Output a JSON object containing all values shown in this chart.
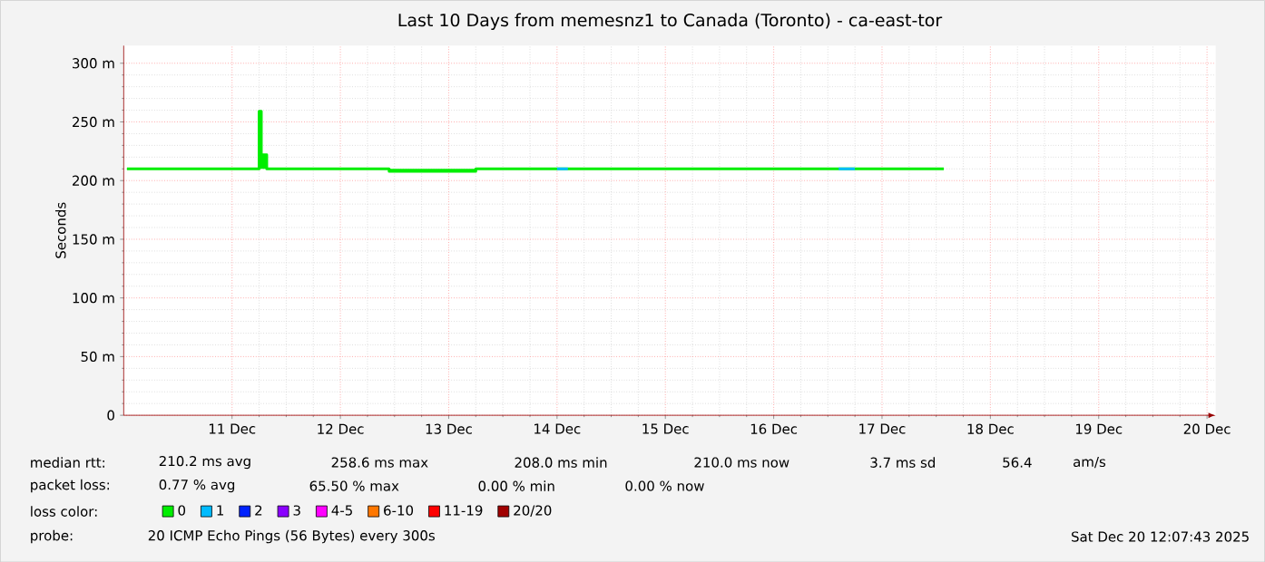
{
  "chart_data": {
    "type": "line",
    "title": "Last 10 Days from memesnz1 to Canada (Toronto) - ca-east-tor",
    "ylabel": "Seconds",
    "xlim": [
      "2025-12-10T00:00",
      "2025-12-20T01:55"
    ],
    "ylim": [
      0,
      315
    ],
    "xticks": [
      {
        "value": "2025-12-11",
        "label": "11 Dec"
      },
      {
        "value": "2025-12-12",
        "label": "12 Dec"
      },
      {
        "value": "2025-12-13",
        "label": "13 Dec"
      },
      {
        "value": "2025-12-14",
        "label": "14 Dec"
      },
      {
        "value": "2025-12-15",
        "label": "15 Dec"
      },
      {
        "value": "2025-12-16",
        "label": "16 Dec"
      },
      {
        "value": "2025-12-17",
        "label": "17 Dec"
      },
      {
        "value": "2025-12-18",
        "label": "18 Dec"
      },
      {
        "value": "2025-12-19",
        "label": "19 Dec"
      },
      {
        "value": "2025-12-20",
        "label": "20 Dec"
      }
    ],
    "yticks": [
      0,
      {
        "value": 50,
        "label": "50 m"
      },
      {
        "value": 100,
        "label": "100 m"
      },
      {
        "value": 150,
        "label": "150 m"
      },
      {
        "value": 200,
        "label": "200 m"
      },
      {
        "value": 250,
        "label": "250 m"
      },
      {
        "value": 300,
        "label": "300 m"
      }
    ],
    "grid": true,
    "legend": "bottom",
    "legend_title": "loss color:",
    "series": [
      {
        "name": "0",
        "color": "#00ee00",
        "x": [
          "2025-12-10T00:43",
          "2025-12-11T06:00",
          "2025-12-11T06:00",
          "2025-12-11T06:29",
          "2025-12-11T06:29",
          "2025-12-11T07:41",
          "2025-12-11T07:41",
          "2025-12-12T10:48",
          "2025-12-12T10:48",
          "2025-12-13T06:00",
          "2025-12-13T06:00",
          "2025-12-17T13:41"
        ],
        "values": [
          210,
          210,
          259,
          259,
          222,
          222,
          210,
          210,
          208,
          208,
          210,
          210
        ]
      },
      {
        "name": "1",
        "color": "#00bbff",
        "x": [
          "2025-12-14T00:00",
          "2025-12-14T02:24"
        ],
        "values": [
          210,
          210
        ]
      },
      {
        "name": "2",
        "color": "#0022ff"
      },
      {
        "name": "3",
        "color": "#8a00ff"
      },
      {
        "name": "4-5",
        "color": "#ff00ff"
      },
      {
        "name": "6-10",
        "color": "#ff7700"
      },
      {
        "name": "11-19",
        "color": "#ff0000"
      },
      {
        "name": "20/20",
        "color": "#a10000"
      },
      {
        "color": "#00bbff",
        "x": [
          "2025-12-16T14:24",
          "2025-12-16T18:00"
        ],
        "values": [
          210,
          210
        ]
      }
    ],
    "annotations": [
      "median rtt:",
      "210.2 ms avg",
      "258.6 ms max",
      "208.0 ms min",
      "210.0 ms now",
      "3.7 ms sd",
      "56.4",
      "am/s",
      "packet loss:",
      "0.77 % avg",
      "65.50 % max",
      "0.00 % min",
      "0.00 % now",
      "probe:",
      "20 ICMP Echo Pings (56 Bytes) every 300s",
      "Sat Dec 20 12:07:43 2025"
    ]
  }
}
